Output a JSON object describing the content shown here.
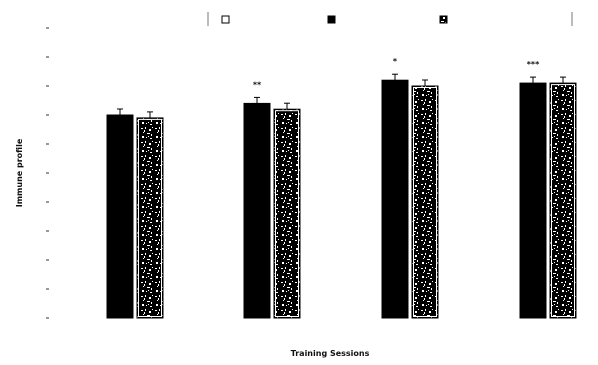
{
  "chart_data": {
    "type": "bar",
    "xlabel": "Training Sessions",
    "ylabel": "Immune profile",
    "ylim": [
      0,
      10
    ],
    "categories": [
      "",
      "",
      "",
      ""
    ],
    "series": [
      {
        "values": [
          7.0,
          7.4,
          8.2,
          8.1
        ],
        "color": "#000000",
        "pattern": "solid"
      },
      {
        "values": [
          6.9,
          7.2,
          8.0,
          8.1
        ],
        "color": "#ffffff",
        "pattern": "speckled"
      }
    ],
    "legend": {
      "placement": "top",
      "entries": [
        "",
        "",
        ""
      ]
    },
    "significance_marks": [
      "",
      "**",
      "*",
      "***"
    ],
    "annotations": [
      "",
      "",
      "",
      ""
    ]
  }
}
